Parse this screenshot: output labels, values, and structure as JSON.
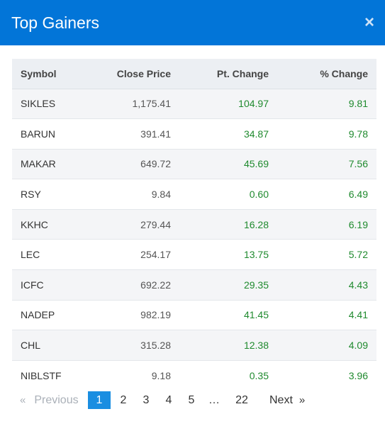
{
  "modal": {
    "title": "Top Gainers",
    "close_icon": "×"
  },
  "table": {
    "headers": {
      "symbol": "Symbol",
      "close": "Close Price",
      "pt": "Pt. Change",
      "pct": "% Change"
    },
    "rows": [
      {
        "symbol": "SIKLES",
        "close": "1,175.41",
        "pt": "104.97",
        "pct": "9.81"
      },
      {
        "symbol": "BARUN",
        "close": "391.41",
        "pt": "34.87",
        "pct": "9.78"
      },
      {
        "symbol": "MAKAR",
        "close": "649.72",
        "pt": "45.69",
        "pct": "7.56"
      },
      {
        "symbol": "RSY",
        "close": "9.84",
        "pt": "0.60",
        "pct": "6.49"
      },
      {
        "symbol": "KKHC",
        "close": "279.44",
        "pt": "16.28",
        "pct": "6.19"
      },
      {
        "symbol": "LEC",
        "close": "254.17",
        "pt": "13.75",
        "pct": "5.72"
      },
      {
        "symbol": "ICFC",
        "close": "692.22",
        "pt": "29.35",
        "pct": "4.43"
      },
      {
        "symbol": "NADEP",
        "close": "982.19",
        "pt": "41.45",
        "pct": "4.41"
      },
      {
        "symbol": "CHL",
        "close": "315.28",
        "pt": "12.38",
        "pct": "4.09"
      },
      {
        "symbol": "NIBLSTF",
        "close": "9.18",
        "pt": "0.35",
        "pct": "3.96"
      }
    ]
  },
  "pagination": {
    "prev_arrow": "«",
    "prev_label": "Previous",
    "pages": [
      "1",
      "2",
      "3",
      "4",
      "5",
      "…",
      "22"
    ],
    "active": "1",
    "next_label": "Next",
    "next_arrow": "»"
  },
  "colors": {
    "header_bg": "#0275d8",
    "positive": "#1f8a2e",
    "active_page": "#1a8ee1"
  }
}
